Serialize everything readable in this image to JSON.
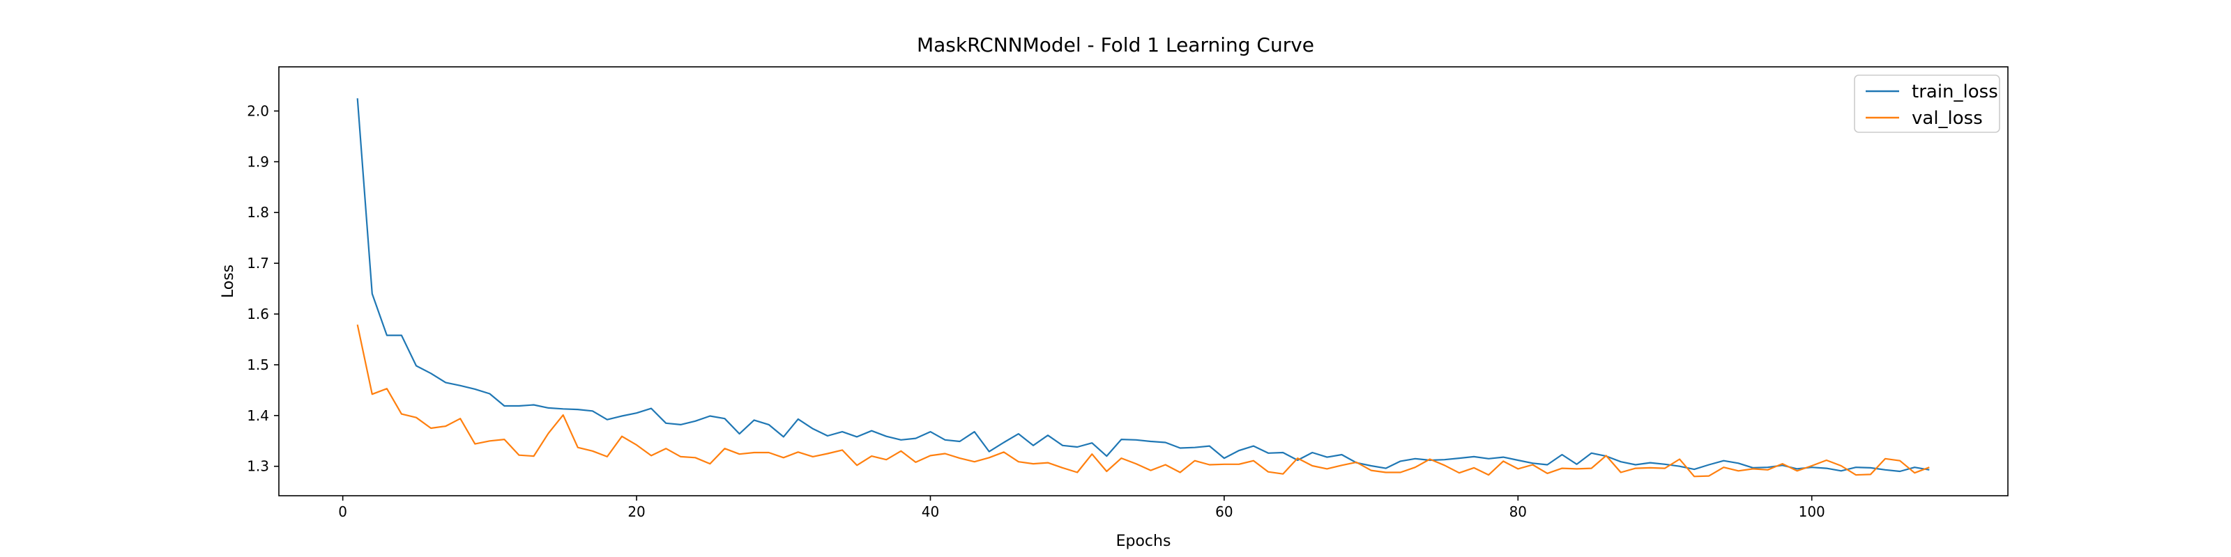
{
  "chart_data": {
    "type": "line",
    "title": "MaskRCNNModel - Fold 1 Learning Curve",
    "xlabel": "Epochs",
    "ylabel": "Loss",
    "xlim": [
      -4.35,
      113.35
    ],
    "ylim": [
      1.242,
      2.087
    ],
    "xticks": [
      0,
      20,
      40,
      60,
      80,
      100
    ],
    "yticks": [
      1.3,
      1.4,
      1.5,
      1.6,
      1.7,
      1.8,
      1.9,
      2.0
    ],
    "grid": false,
    "legend": "top-right",
    "x": [
      1,
      2,
      3,
      4,
      5,
      6,
      7,
      8,
      9,
      10,
      11,
      12,
      13,
      14,
      15,
      16,
      17,
      18,
      19,
      20,
      21,
      22,
      23,
      24,
      25,
      26,
      27,
      28,
      29,
      30,
      31,
      32,
      33,
      34,
      35,
      36,
      37,
      38,
      39,
      40,
      41,
      42,
      43,
      44,
      45,
      46,
      47,
      48,
      49,
      50,
      51,
      52,
      53,
      54,
      55,
      56,
      57,
      58,
      59,
      60,
      61,
      62,
      63,
      64,
      65,
      66,
      67,
      68,
      69,
      70,
      71,
      72,
      73,
      74,
      75,
      76,
      77,
      78,
      79,
      80,
      81,
      82,
      83,
      84,
      85,
      86,
      87,
      88,
      89,
      90,
      91,
      92,
      93,
      94,
      95,
      96,
      97,
      98,
      99,
      100,
      101,
      102,
      103,
      104,
      105,
      106,
      107,
      108
    ],
    "series": [
      {
        "name": "train_loss",
        "color": "#1f77b4",
        "values": [
          2.025,
          1.64,
          1.558,
          1.558,
          1.498,
          1.483,
          1.465,
          1.459,
          1.452,
          1.443,
          1.419,
          1.419,
          1.421,
          1.415,
          1.413,
          1.412,
          1.409,
          1.392,
          1.399,
          1.405,
          1.414,
          1.385,
          1.382,
          1.389,
          1.399,
          1.394,
          1.364,
          1.391,
          1.382,
          1.358,
          1.393,
          1.374,
          1.36,
          1.368,
          1.358,
          1.37,
          1.359,
          1.352,
          1.355,
          1.368,
          1.352,
          1.349,
          1.368,
          1.329,
          1.347,
          1.364,
          1.341,
          1.361,
          1.341,
          1.338,
          1.346,
          1.32,
          1.353,
          1.352,
          1.349,
          1.347,
          1.336,
          1.337,
          1.34,
          1.316,
          1.331,
          1.34,
          1.326,
          1.327,
          1.312,
          1.327,
          1.318,
          1.323,
          1.307,
          1.301,
          1.296,
          1.31,
          1.315,
          1.312,
          1.313,
          1.316,
          1.319,
          1.315,
          1.318,
          1.312,
          1.306,
          1.303,
          1.323,
          1.304,
          1.326,
          1.32,
          1.309,
          1.303,
          1.307,
          1.304,
          1.3,
          1.294,
          1.303,
          1.311,
          1.306,
          1.297,
          1.298,
          1.302,
          1.295,
          1.298,
          1.296,
          1.291,
          1.298,
          1.297,
          1.293,
          1.29,
          1.298,
          1.293
        ]
      },
      {
        "name": "val_loss",
        "color": "#ff7f0e",
        "values": [
          1.579,
          1.442,
          1.453,
          1.403,
          1.396,
          1.375,
          1.379,
          1.394,
          1.344,
          1.35,
          1.353,
          1.322,
          1.32,
          1.365,
          1.401,
          1.337,
          1.33,
          1.319,
          1.359,
          1.342,
          1.321,
          1.335,
          1.319,
          1.317,
          1.305,
          1.335,
          1.324,
          1.327,
          1.327,
          1.317,
          1.328,
          1.319,
          1.325,
          1.332,
          1.302,
          1.32,
          1.313,
          1.33,
          1.308,
          1.321,
          1.325,
          1.316,
          1.309,
          1.317,
          1.328,
          1.309,
          1.305,
          1.307,
          1.297,
          1.288,
          1.324,
          1.29,
          1.316,
          1.305,
          1.292,
          1.303,
          1.288,
          1.311,
          1.303,
          1.304,
          1.304,
          1.311,
          1.289,
          1.285,
          1.316,
          1.301,
          1.295,
          1.302,
          1.308,
          1.292,
          1.288,
          1.288,
          1.298,
          1.314,
          1.302,
          1.287,
          1.297,
          1.283,
          1.31,
          1.295,
          1.303,
          1.286,
          1.296,
          1.295,
          1.296,
          1.321,
          1.288,
          1.296,
          1.297,
          1.296,
          1.314,
          1.28,
          1.281,
          1.298,
          1.291,
          1.295,
          1.293,
          1.305,
          1.291,
          1.301,
          1.312,
          1.301,
          1.283,
          1.284,
          1.315,
          1.311,
          1.287,
          1.298
        ]
      }
    ]
  }
}
